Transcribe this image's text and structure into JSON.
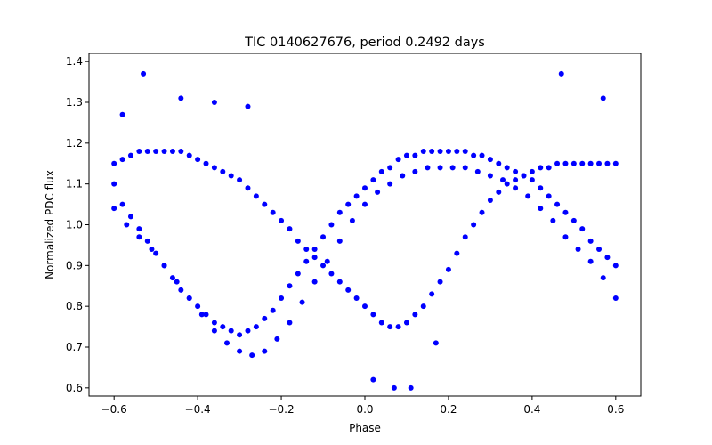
{
  "chart_data": {
    "type": "scatter",
    "title": "TIC 0140627676, period 0.2492 days",
    "xlabel": "Phase",
    "ylabel": "Normalized PDC flux",
    "xlim": [
      -0.66,
      0.66
    ],
    "ylim": [
      0.58,
      1.42
    ],
    "xticks": [
      -0.6,
      -0.4,
      -0.2,
      0.0,
      0.2,
      0.4,
      0.6
    ],
    "xtick_labels": [
      "−0.6",
      "−0.4",
      "−0.2",
      "0.0",
      "0.2",
      "0.4",
      "0.6"
    ],
    "yticks": [
      0.6,
      0.7,
      0.8,
      0.9,
      1.0,
      1.1,
      1.2,
      1.3,
      1.4
    ],
    "ytick_labels": [
      "0.6",
      "0.7",
      "0.8",
      "0.9",
      "1.0",
      "1.1",
      "1.2",
      "1.3",
      "1.4"
    ],
    "grid": false,
    "marker_color": "#0000ff",
    "series": [
      {
        "x": [
          -0.6,
          -0.58,
          -0.56,
          -0.54,
          -0.52,
          -0.5,
          -0.48,
          -0.46,
          -0.44,
          -0.42,
          -0.4,
          -0.38,
          -0.36,
          -0.34,
          -0.32,
          -0.3,
          -0.28,
          -0.26,
          -0.24,
          -0.22,
          -0.2,
          -0.18,
          -0.16,
          -0.14,
          -0.12,
          -0.1,
          -0.08,
          -0.06,
          -0.04,
          -0.02,
          0.0,
          0.02,
          0.04,
          0.06,
          0.08,
          0.1,
          0.12,
          0.14,
          0.16,
          0.18,
          0.2,
          0.22,
          0.24,
          0.26,
          0.28,
          0.3,
          0.32,
          0.34,
          0.36,
          0.38,
          0.4,
          0.42,
          0.44,
          0.46,
          0.48,
          0.5,
          0.52,
          0.54,
          0.56,
          0.58,
          0.6
        ],
        "y": [
          1.1,
          1.05,
          1.02,
          0.99,
          0.96,
          0.93,
          0.9,
          0.87,
          0.84,
          0.82,
          0.8,
          0.78,
          0.76,
          0.75,
          0.74,
          0.73,
          0.74,
          0.75,
          0.77,
          0.79,
          0.82,
          0.85,
          0.88,
          0.91,
          0.94,
          0.97,
          1.0,
          1.03,
          1.05,
          1.07,
          1.09,
          1.11,
          1.13,
          1.14,
          1.16,
          1.17,
          1.17,
          1.18,
          1.18,
          1.18,
          1.18,
          1.18,
          1.18,
          1.17,
          1.17,
          1.16,
          1.15,
          1.14,
          1.13,
          1.12,
          1.11,
          1.09,
          1.07,
          1.05,
          1.03,
          1.01,
          0.99,
          0.96,
          0.94,
          0.92,
          0.9
        ]
      },
      {
        "x": [
          -0.6,
          -0.58,
          -0.56,
          -0.54,
          -0.52,
          -0.5,
          -0.48,
          -0.46,
          -0.44,
          -0.42,
          -0.4,
          -0.38,
          -0.36,
          -0.34,
          -0.32,
          -0.3,
          -0.28,
          -0.26,
          -0.24,
          -0.22,
          -0.2,
          -0.18,
          -0.16,
          -0.14,
          -0.12,
          -0.1,
          -0.08,
          -0.06,
          -0.04,
          -0.02,
          0.0,
          0.02,
          0.04,
          0.06,
          0.08,
          0.1,
          0.12,
          0.14,
          0.16,
          0.18,
          0.2,
          0.22,
          0.24,
          0.26,
          0.28,
          0.3,
          0.32,
          0.34,
          0.36,
          0.38,
          0.4,
          0.42,
          0.44,
          0.46,
          0.48,
          0.5,
          0.52,
          0.54,
          0.56,
          0.58,
          0.6
        ],
        "y": [
          1.15,
          1.16,
          1.17,
          1.18,
          1.18,
          1.18,
          1.18,
          1.18,
          1.18,
          1.17,
          1.16,
          1.15,
          1.14,
          1.13,
          1.12,
          1.11,
          1.09,
          1.07,
          1.05,
          1.03,
          1.01,
          0.99,
          0.96,
          0.94,
          0.92,
          0.9,
          0.88,
          0.86,
          0.84,
          0.82,
          0.8,
          0.78,
          0.76,
          0.75,
          0.75,
          0.76,
          0.78,
          0.8,
          0.83,
          0.86,
          0.89,
          0.93,
          0.97,
          1.0,
          1.03,
          1.06,
          1.08,
          1.1,
          1.11,
          1.12,
          1.13,
          1.14,
          1.14,
          1.15,
          1.15,
          1.15,
          1.15,
          1.15,
          1.15,
          1.15,
          1.15
        ]
      },
      {
        "x": [
          -0.6,
          -0.57,
          -0.54,
          -0.51,
          -0.48,
          -0.45,
          -0.42,
          -0.39,
          -0.36,
          -0.33,
          -0.3,
          -0.27,
          -0.24,
          -0.21,
          -0.18,
          -0.15,
          -0.12,
          -0.09,
          -0.06,
          -0.03,
          0.0,
          0.03,
          0.06,
          0.09,
          0.12,
          0.15,
          0.18,
          0.21,
          0.24,
          0.27,
          0.3,
          0.33,
          0.36,
          0.39,
          0.42,
          0.45,
          0.48,
          0.51,
          0.54,
          0.57,
          0.6
        ],
        "y": [
          1.04,
          1.0,
          0.97,
          0.94,
          0.9,
          0.86,
          0.82,
          0.78,
          0.74,
          0.71,
          0.69,
          0.68,
          0.69,
          0.72,
          0.76,
          0.81,
          0.86,
          0.91,
          0.96,
          1.01,
          1.05,
          1.08,
          1.1,
          1.12,
          1.13,
          1.14,
          1.14,
          1.14,
          1.14,
          1.13,
          1.12,
          1.11,
          1.09,
          1.07,
          1.04,
          1.01,
          0.97,
          0.94,
          0.91,
          0.87,
          0.82
        ]
      },
      {
        "x": [
          -0.53,
          0.47,
          -0.44,
          -0.28,
          0.02,
          0.07,
          0.11,
          -0.58,
          0.57,
          -0.36,
          0.17
        ],
        "y": [
          1.37,
          1.37,
          1.31,
          1.29,
          0.62,
          0.6,
          0.6,
          1.27,
          1.31,
          1.3,
          0.71
        ]
      }
    ]
  }
}
